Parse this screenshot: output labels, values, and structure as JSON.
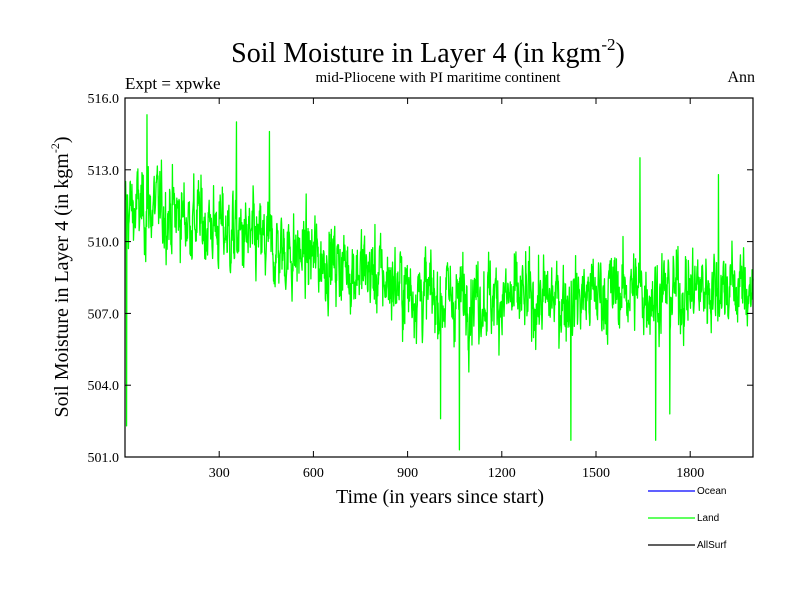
{
  "chart_data": {
    "type": "line",
    "title": "Soil Moisture in Layer 4 (in kgm",
    "title_sup": "-2",
    "title_end": ")",
    "subtitle_left": "Expt = xpwke",
    "subtitle_center": "mid-Pliocene with PI maritime continent",
    "subtitle_right": "Ann",
    "xlabel": "Time (in years since start)",
    "ylabel": "Soil Moisture in Layer 4 (in kgm",
    "ylabel_sup": "-2",
    "ylabel_end": ")",
    "xlim": [
      0,
      2000
    ],
    "ylim": [
      501.0,
      516.0
    ],
    "xticks": [
      300,
      600,
      900,
      1200,
      1500,
      1800
    ],
    "xtick_labels": [
      "300",
      "600",
      "900",
      "1200",
      "1500",
      "1800"
    ],
    "yticks": [
      501.0,
      504.0,
      507.0,
      510.0,
      513.0,
      516.0
    ],
    "ytick_labels": [
      "501.0",
      "504.0",
      "507.0",
      "510.0",
      "513.0",
      "516.0"
    ],
    "legend_position": "bottom-right below axes",
    "series": [
      {
        "name": "Ocean",
        "color": "#0000ff",
        "values": []
      },
      {
        "name": "Land",
        "color": "#00ff00",
        "trend_x": [
          0,
          100,
          200,
          300,
          400,
          500,
          600,
          700,
          800,
          900,
          1000,
          1100,
          1200,
          1300,
          1400,
          1500,
          1600,
          1700,
          1800,
          1900,
          2000
        ],
        "trend_y": [
          511.3,
          511.4,
          511.0,
          510.6,
          510.0,
          509.6,
          509.4,
          509.0,
          508.6,
          508.0,
          507.6,
          507.8,
          507.6,
          507.5,
          507.6,
          507.8,
          508.0,
          507.8,
          508.0,
          508.2,
          508.0
        ],
        "variability": 1.6,
        "peaks": [
          {
            "x": 70,
            "y": 515.3
          },
          {
            "x": 355,
            "y": 515.0
          },
          {
            "x": 460,
            "y": 514.6
          },
          {
            "x": 1640,
            "y": 513.5
          },
          {
            "x": 1890,
            "y": 512.8
          },
          {
            "x": 5,
            "y": 502.3
          },
          {
            "x": 1065,
            "y": 501.3
          },
          {
            "x": 1005,
            "y": 502.6
          },
          {
            "x": 1690,
            "y": 501.7
          },
          {
            "x": 1420,
            "y": 501.7
          },
          {
            "x": 1735,
            "y": 502.8
          }
        ]
      },
      {
        "name": "AllSurf",
        "color": "#000000",
        "values": []
      }
    ]
  }
}
